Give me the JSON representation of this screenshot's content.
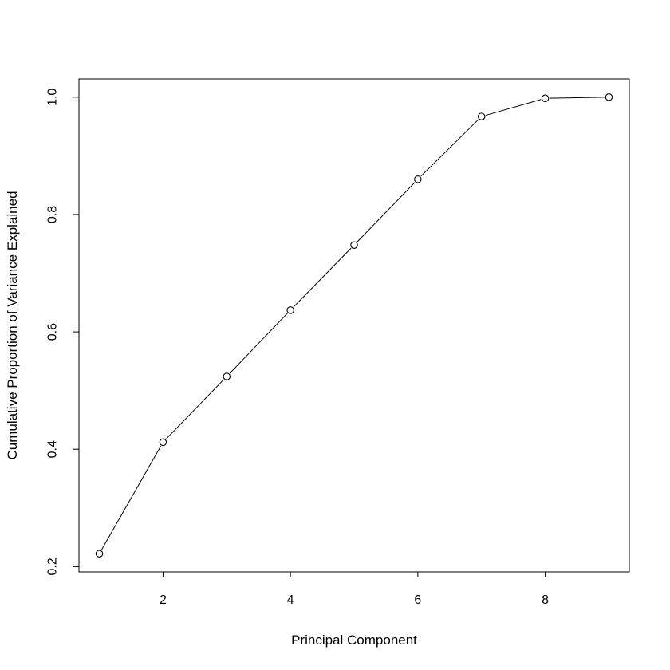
{
  "chart_data": {
    "type": "line",
    "title": "",
    "xlabel": "Principal Component",
    "ylabel": "Cumulative Proportion of Variance Explained",
    "x": [
      1,
      2,
      3,
      4,
      5,
      6,
      7,
      8,
      9
    ],
    "series": [
      {
        "values": [
          0.222,
          0.412,
          0.524,
          0.637,
          0.748,
          0.86,
          0.967,
          0.998,
          1.0
        ]
      }
    ],
    "xlim": [
      0.68,
      9.32
    ],
    "ylim": [
      0.191,
      1.031
    ],
    "xticks": [
      2,
      4,
      6,
      8
    ],
    "xtick_labels": [
      "2",
      "4",
      "6",
      "8"
    ],
    "yticks": [
      0.2,
      0.4,
      0.6,
      0.8,
      1.0
    ],
    "ytick_labels": [
      "0.2",
      "0.4",
      "0.6",
      "0.8",
      "1.0"
    ],
    "marker": "open-circle",
    "line_color": "#000000",
    "grid": false,
    "legend": "none"
  }
}
